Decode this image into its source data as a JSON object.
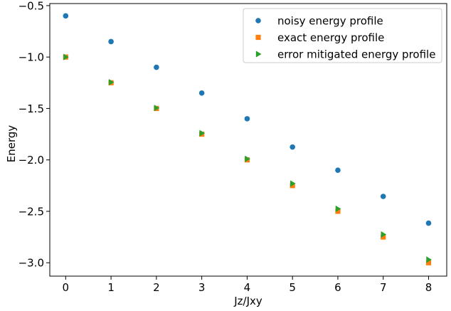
{
  "chart_data": {
    "type": "scatter",
    "title": "",
    "xlabel": "Jz/Jxy",
    "ylabel": "Energy",
    "xlim": [
      -0.35,
      8.4
    ],
    "ylim": [
      -3.13,
      -0.48
    ],
    "x_ticks": [
      0,
      1,
      2,
      3,
      4,
      5,
      6,
      7,
      8
    ],
    "y_ticks": [
      -0.5,
      -1.0,
      -1.5,
      -2.0,
      -2.5,
      -3.0
    ],
    "x_tick_labels": [
      "0",
      "1",
      "2",
      "3",
      "4",
      "5",
      "6",
      "7",
      "8"
    ],
    "y_tick_labels": [
      "−0.5",
      "−1.0",
      "−1.5",
      "−2.0",
      "−2.5",
      "−3.0"
    ],
    "grid": false,
    "legend_position": "top-right",
    "x": [
      0,
      1,
      2,
      3,
      4,
      5,
      6,
      7,
      8
    ],
    "series": [
      {
        "name": "noisy energy profile",
        "marker": "circle",
        "color": "#1f77b4",
        "values": [
          -0.6,
          -0.85,
          -1.1,
          -1.35,
          -1.6,
          -1.875,
          -2.1,
          -2.355,
          -2.615
        ]
      },
      {
        "name": "exact energy profile",
        "marker": "square",
        "color": "#ff7f0e",
        "values": [
          -1.0,
          -1.25,
          -1.5,
          -1.75,
          -2.0,
          -2.25,
          -2.5,
          -2.75,
          -3.0
        ]
      },
      {
        "name": "error mitigated energy profile",
        "marker": "triangle-right",
        "color": "#2ca02c",
        "values": [
          -1.0,
          -1.245,
          -1.495,
          -1.74,
          -1.99,
          -2.23,
          -2.475,
          -2.725,
          -2.97
        ]
      }
    ]
  }
}
